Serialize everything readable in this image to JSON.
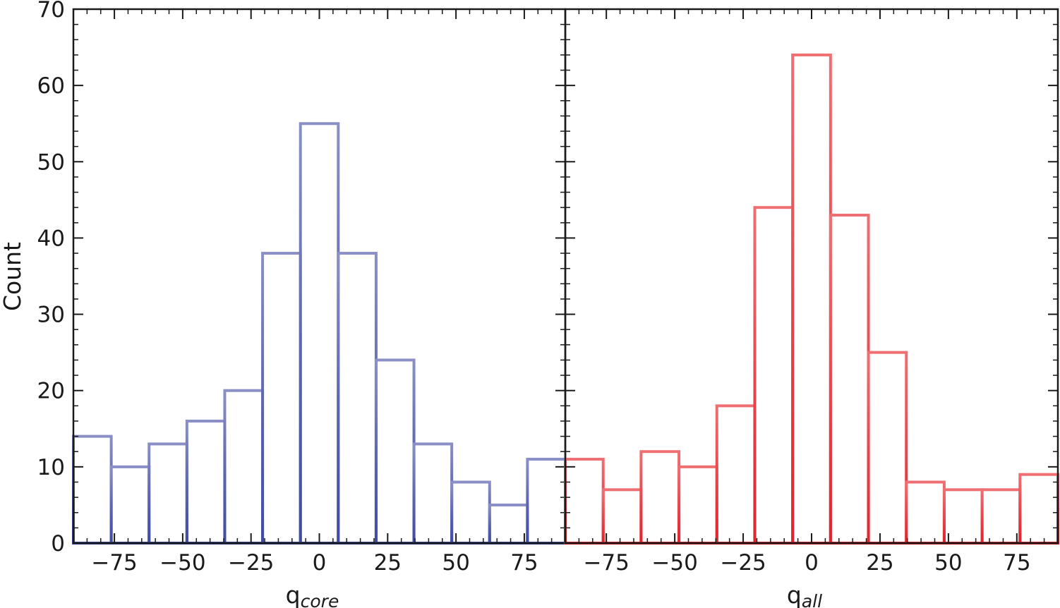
{
  "chart_data": [
    {
      "type": "bar",
      "subtype": "histogram-step",
      "xlabel_main": "q",
      "xlabel_sub": "core",
      "ylabel": "Count",
      "xlim": [
        -90,
        90
      ],
      "ylim": [
        0,
        70
      ],
      "xticks": [
        -75,
        -50,
        -25,
        0,
        25,
        50,
        75
      ],
      "xtick_labels": [
        "−75",
        "−50",
        "−25",
        "0",
        "25",
        "50",
        "75"
      ],
      "yticks": [
        0,
        10,
        20,
        30,
        40,
        50,
        60,
        70
      ],
      "ytick_labels": [
        "0",
        "10",
        "20",
        "30",
        "40",
        "50",
        "60",
        "70"
      ],
      "bin_edges": [
        -90,
        -76.15,
        -62.31,
        -48.46,
        -34.62,
        -20.77,
        -6.92,
        6.92,
        20.77,
        34.62,
        48.46,
        62.31,
        76.15,
        90
      ],
      "values": [
        14,
        10,
        13,
        16,
        20,
        38,
        55,
        38,
        24,
        13,
        8,
        5,
        11
      ],
      "color": "#4a55a8"
    },
    {
      "type": "bar",
      "subtype": "histogram-step",
      "xlabel_main": "q",
      "xlabel_sub": "all",
      "xlim": [
        -90,
        90
      ],
      "ylim": [
        0,
        70
      ],
      "xticks": [
        -75,
        -50,
        -25,
        0,
        25,
        50,
        75
      ],
      "xtick_labels": [
        "−75",
        "−50",
        "−25",
        "0",
        "25",
        "50",
        "75"
      ],
      "bin_edges": [
        -90,
        -76.15,
        -62.31,
        -48.46,
        -34.62,
        -20.77,
        -6.92,
        6.92,
        20.77,
        34.62,
        48.46,
        62.31,
        76.15,
        90
      ],
      "values": [
        11,
        7,
        12,
        10,
        18,
        44,
        64,
        43,
        25,
        8,
        7,
        7,
        9
      ],
      "color": "#e8333c"
    }
  ]
}
